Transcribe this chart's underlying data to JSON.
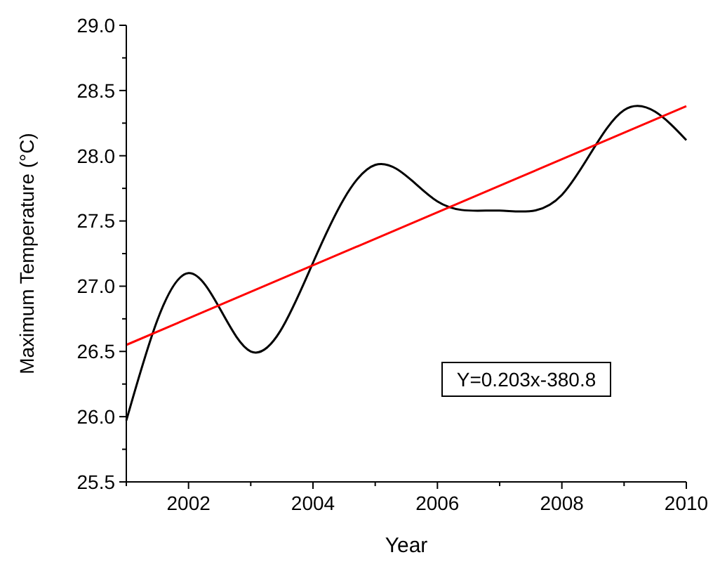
{
  "chart_data": {
    "type": "line",
    "xlabel": "Year",
    "ylabel": "Maximum Temperature (°C)",
    "xlim": [
      2001,
      2010
    ],
    "xticks": [
      2002,
      2004,
      2006,
      2008,
      2010
    ],
    "ylim": [
      25.5,
      29.0
    ],
    "yticks": [
      {
        "value": 25.5,
        "label": "25.5"
      },
      {
        "value": 26,
        "label": "26.0"
      },
      {
        "value": 26.5,
        "label": "26.5"
      },
      {
        "value": 27,
        "label": "27.0"
      },
      {
        "value": 27.5,
        "label": "27.5"
      },
      {
        "value": 28,
        "label": "28.0"
      },
      {
        "value": 28.5,
        "label": "28.5"
      },
      {
        "value": 29,
        "label": "29.0"
      }
    ],
    "x": [
      2001,
      2002,
      2003,
      2004,
      2005,
      2006,
      2007,
      2008,
      2009,
      2010
    ],
    "series": [
      {
        "color": "#000000",
        "values": [
          25.97,
          27.1,
          26.5,
          27.18,
          27.93,
          27.65,
          27.58,
          27.7,
          28.35,
          28.12
        ]
      },
      {
        "type": "line",
        "color": "#ff0000",
        "x": [
          2001,
          2010
        ],
        "values": [
          26.55,
          28.38
        ]
      }
    ],
    "annotations": [
      "Y=0.203x-380.8"
    ],
    "grid": false,
    "marker": "none",
    "line_style": "solid"
  }
}
